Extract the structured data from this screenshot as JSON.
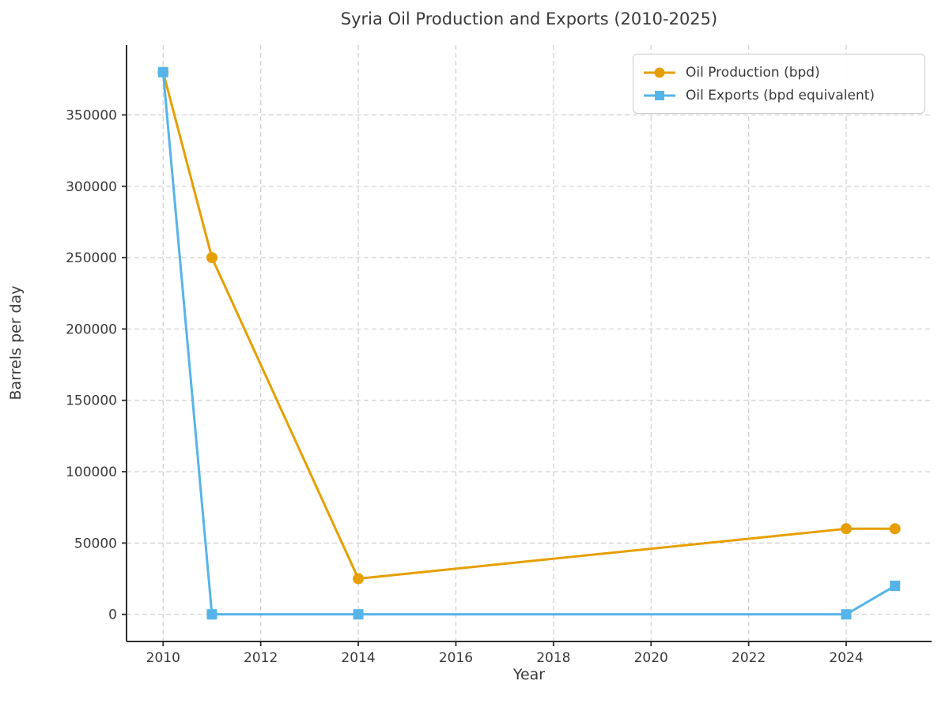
{
  "chart_data": {
    "type": "line",
    "title": "Syria Oil Production and Exports (2010-2025)",
    "xlabel": "Year",
    "ylabel": "Barrels per day",
    "x": [
      2010,
      2011,
      2014,
      2024,
      2025
    ],
    "series": [
      {
        "name": "Oil Production (bpd)",
        "values": [
          380000,
          250000,
          25000,
          60000,
          60000
        ],
        "color": "#E69F00",
        "marker": "circle"
      },
      {
        "name": "Oil Exports (bpd equivalent)",
        "values": [
          380000,
          0,
          0,
          0,
          20000
        ],
        "color": "#56B4E9",
        "marker": "square"
      }
    ],
    "xticks": [
      2010,
      2012,
      2014,
      2016,
      2018,
      2020,
      2022,
      2024
    ],
    "yticks": [
      0,
      50000,
      100000,
      150000,
      200000,
      250000,
      300000,
      350000
    ],
    "xlim": [
      2009.25,
      2025.75
    ],
    "ylim": [
      -19000,
      399000
    ],
    "grid": true,
    "grid_color": "#cfcfcf",
    "spine_color": "#2e2e2e",
    "text_color": "#3a3a3a",
    "legend_position": "upper right"
  }
}
